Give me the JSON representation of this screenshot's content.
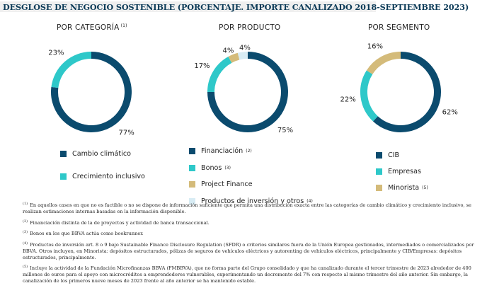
{
  "header": {
    "title": "DESGLOSE DE NEGOCIO SOSTENIBLE (PORCENTAJE. IMPORTE CANALIZADO 2018-SEPTIEMBRE 2023)"
  },
  "panels": {
    "categoria": {
      "title": "POR CATEGORÍA",
      "note": "(1)"
    },
    "producto": {
      "title": "POR PRODUCTO",
      "note": ""
    },
    "segmento": {
      "title": "POR SEGMENTO",
      "note": ""
    }
  },
  "colors": {
    "dark_blue": "#0b4b6e",
    "teal": "#2ec8c9",
    "sand": "#d4bb7a",
    "light_blue": "#d8ecf4"
  },
  "chart_data": [
    {
      "type": "pie",
      "title": "POR CATEGORÍA (1)",
      "categories": [
        "Cambio climático",
        "Crecimiento inclusivo"
      ],
      "values": [
        77,
        23
      ],
      "labels": [
        "77%",
        "23%"
      ],
      "legend": [
        {
          "label": "Cambio climático",
          "note": ""
        },
        {
          "label": "Crecimiento inclusivo",
          "note": ""
        }
      ]
    },
    {
      "type": "pie",
      "title": "POR PRODUCTO",
      "categories": [
        "Financiación",
        "Bonos",
        "Project Finance",
        "Productos de inversión y otros"
      ],
      "values": [
        75,
        17,
        4,
        4
      ],
      "labels": [
        "75%",
        "17%",
        "4%",
        "4%"
      ],
      "legend": [
        {
          "label": "Financiación",
          "note": "(2)"
        },
        {
          "label": "Bonos",
          "note": "(3)"
        },
        {
          "label": "Project Finance",
          "note": ""
        },
        {
          "label": "Productos de inversión y otros",
          "note": "(4)"
        }
      ]
    },
    {
      "type": "pie",
      "title": "POR SEGMENTO",
      "categories": [
        "CIB",
        "Empresas",
        "Minorista"
      ],
      "values": [
        62,
        22,
        16
      ],
      "labels": [
        "62%",
        "22%",
        "16%"
      ],
      "legend": [
        {
          "label": "CIB",
          "note": ""
        },
        {
          "label": "Empresas",
          "note": ""
        },
        {
          "label": "Minorista",
          "note": "(5)"
        }
      ]
    }
  ],
  "footnotes": [
    {
      "mark": "(1)",
      "text": "En aquellos casos en que no es factible o no se dispone de información suficiente que permita una distribución exacta entre las categorías de cambio climático y crecimiento inclusivo, se realizan estimaciones internas basadas en la información disponible."
    },
    {
      "mark": "(2)",
      "text": "Financiación distinta de la de proyectos y actividad de banca transaccional."
    },
    {
      "mark": "(3)",
      "text": "Bonos en los que BBVA actúa como bookrunner."
    },
    {
      "mark": "(4)",
      "text": "Productos de inversión art. 8 o 9 bajo Sustainable Finance Disclosure Regulation (SFDR) o criterios similares fuera de la Unión Europea gestionados, intermediados o comercializados por BBVA. Otros incluyen, en Minorista: depósitos estructurados, pólizas de seguros de vehículos eléctricos y autorenting de vehículos eléctricos, principalmente y CIB/Empresas: depósitos estructurados, principalmente."
    },
    {
      "mark": "(5)",
      "text": "Incluye la actividad de la Fundación Microfinanzas BBVA (FMBBVA), que no forma parte del Grupo consolidado y que ha canalizado durante el tercer trimestre de 2023 alrededor de 400 millones de euros para el apoyo con microcréditos a emprendedores vulnerables, experimentando un decremento del 7% con respecto al mismo trimestre del año anterior. Sin embargo, la canalización de los primeros nueve meses de 2023 frente al año anterior se ha mantenido estable."
    }
  ]
}
